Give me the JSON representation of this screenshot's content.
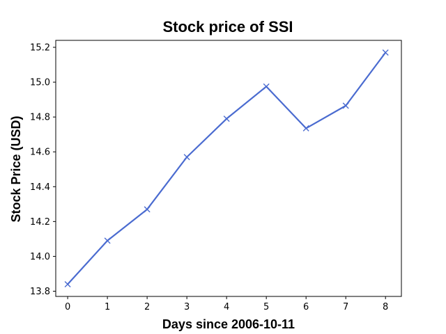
{
  "chart_data": {
    "type": "line",
    "title": "Stock price of SSI",
    "xlabel": "Days since 2006-10-11",
    "ylabel": "Stock Price (USD)",
    "x": [
      0,
      1,
      2,
      3,
      4,
      5,
      6,
      7,
      8
    ],
    "series": [
      {
        "values": [
          13.84,
          14.09,
          14.27,
          14.57,
          14.79,
          14.975,
          14.735,
          14.865,
          15.17
        ],
        "color": "#4a6bd0",
        "marker": "x"
      }
    ],
    "xlim": [
      -0.3,
      8.4
    ],
    "ylim": [
      13.77,
      15.24
    ],
    "xticks": [
      "0",
      "1",
      "2",
      "3",
      "4",
      "5",
      "6",
      "7",
      "8"
    ],
    "yticks": [
      "13.8",
      "14.0",
      "14.2",
      "14.4",
      "14.6",
      "14.8",
      "15.0",
      "15.2"
    ],
    "ytick_values": [
      13.8,
      14.0,
      14.2,
      14.4,
      14.6,
      14.8,
      15.0,
      15.2
    ],
    "grid": false,
    "legend": "none"
  }
}
